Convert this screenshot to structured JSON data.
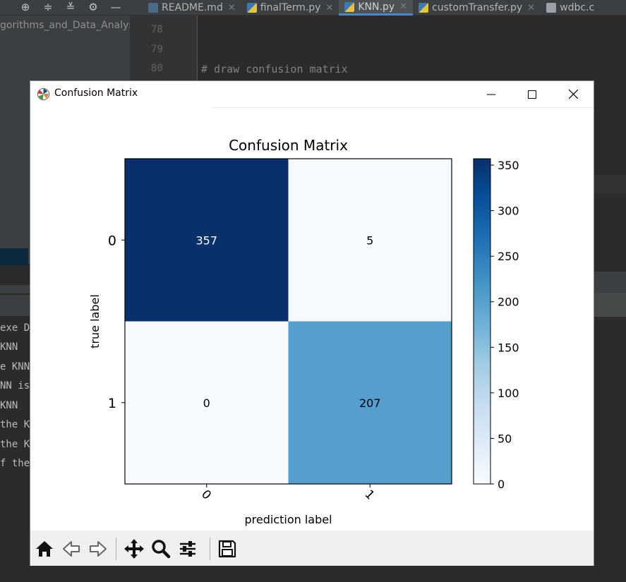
{
  "ide": {
    "toolbar_icons": [
      "target-icon",
      "expand-all-icon",
      "collapse-all-icon",
      "gear-icon",
      "minimize-icon"
    ],
    "tabs": [
      {
        "label": "README.md",
        "icon": "markdown-file-icon",
        "active": false
      },
      {
        "label": "finalTerm.py",
        "icon": "python-file-icon",
        "active": false
      },
      {
        "label": "KNN.py",
        "icon": "python-file-icon",
        "active": true
      },
      {
        "label": "customTransfer.py",
        "icon": "python-file-icon",
        "active": false
      },
      {
        "label": "wdbc.c",
        "icon": "text-file-icon",
        "active": false
      }
    ],
    "project_path": "gorithms_and_Data_Analysis",
    "line_numbers": [
      "78",
      "79",
      "80"
    ],
    "code_line": "# draw confusion matrix",
    "console_lines": [
      "exe D",
      " KNN",
      "e KNN",
      "NN is",
      " KNN",
      "the K",
      "the K",
      "f the"
    ]
  },
  "window": {
    "title": "Confusion Matrix",
    "controls": [
      "minimize",
      "maximize",
      "close"
    ]
  },
  "chart_data": {
    "type": "heatmap",
    "title": "Confusion Matrix",
    "xlabel": "prediction label",
    "ylabel": "true label",
    "x_ticks": [
      "0",
      "1"
    ],
    "y_ticks": [
      "0",
      "1"
    ],
    "matrix": [
      [
        357,
        5
      ],
      [
        0,
        207
      ]
    ],
    "colormap": "Blues",
    "colorbar": {
      "min": 0,
      "max": 357,
      "ticks": [
        0,
        50,
        100,
        150,
        200,
        250,
        300,
        350
      ]
    },
    "cell_colors": [
      "#08306b",
      "#f7fbff",
      "#f7fbff",
      "#549fcd"
    ],
    "text_colors": [
      "#ffffff",
      "#000000",
      "#000000",
      "#000000"
    ]
  },
  "toolbar": {
    "tools": [
      "home-icon",
      "back-arrow-icon",
      "forward-arrow-icon",
      "pan-icon",
      "zoom-icon",
      "configure-subplots-icon",
      "save-icon"
    ]
  }
}
